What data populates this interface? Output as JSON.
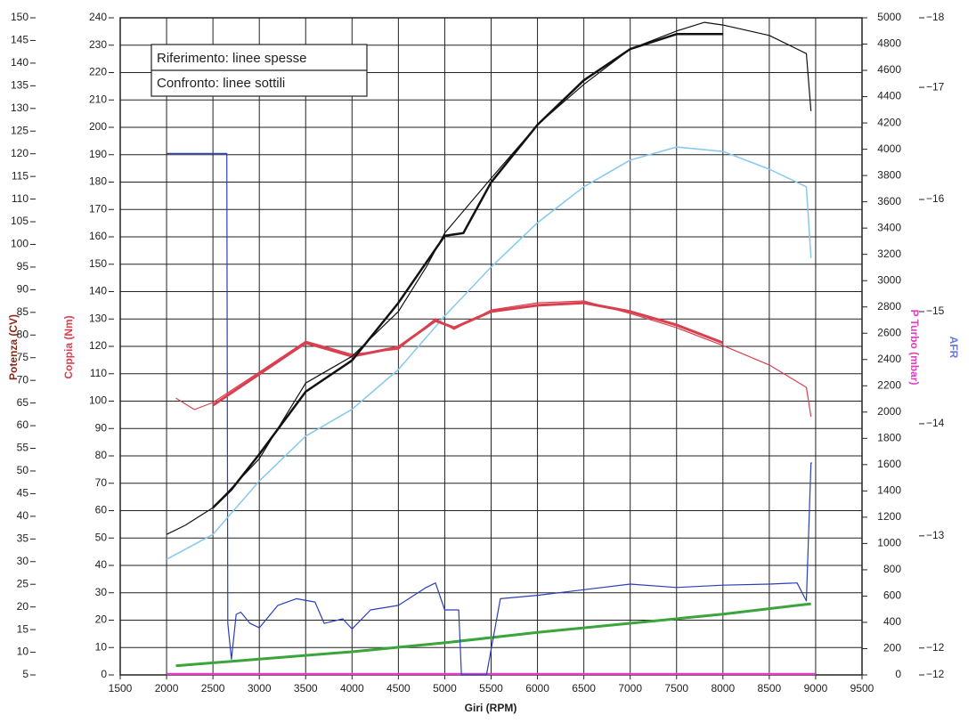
{
  "chart_data": {
    "type": "line",
    "legend": [
      "Riferimento: linee spesse",
      "Confronto: linee sottili"
    ],
    "xlabel": "Giri (RPM)",
    "ylabel": "Potenza (CV)",
    "y2label": "Coppia (Nm)",
    "y3label": "P Turbo (mbar)",
    "y4label": "AFR",
    "xlim": [
      1500,
      9500
    ],
    "xticks": [
      1500,
      2000,
      2500,
      3000,
      3500,
      4000,
      4500,
      5000,
      5500,
      6000,
      6500,
      7000,
      7500,
      8000,
      8500,
      9000,
      9500
    ],
    "ylim": [
      5,
      150
    ],
    "yticks": [
      5,
      10,
      15,
      20,
      25,
      30,
      35,
      40,
      45,
      50,
      55,
      60,
      65,
      70,
      75,
      80,
      85,
      90,
      95,
      100,
      105,
      110,
      115,
      120,
      125,
      130,
      135,
      140,
      145,
      150
    ],
    "y2lim": [
      0,
      240
    ],
    "y2ticks": [
      0,
      10,
      20,
      30,
      40,
      50,
      60,
      70,
      80,
      90,
      100,
      110,
      120,
      130,
      140,
      150,
      160,
      170,
      180,
      190,
      200,
      210,
      220,
      230,
      240
    ],
    "y3lim": [
      0,
      5000
    ],
    "y3ticks": [
      0,
      200,
      400,
      600,
      800,
      1000,
      1200,
      1400,
      1600,
      1800,
      2000,
      2200,
      2400,
      2600,
      2800,
      3000,
      3200,
      3400,
      3600,
      3800,
      4000,
      4200,
      4400,
      4600,
      4800,
      5000
    ],
    "y4lim": [
      -11.76,
      -17.62
    ],
    "y4ticks": [
      {
        "value": -11.76,
        "label": "−12"
      },
      {
        "value": -12,
        "label": "−12"
      },
      {
        "value": -13,
        "label": "−13"
      },
      {
        "value": -14,
        "label": "−14"
      },
      {
        "value": -15,
        "label": "−15"
      },
      {
        "value": -16,
        "label": "−16"
      },
      {
        "value": -17,
        "label": "−17"
      },
      {
        "value": -17.62,
        "label": "−18"
      }
    ],
    "grid": true,
    "series": [
      {
        "color": "#3aa53a",
        "axis": "y",
        "line_width": 3,
        "x": [
          2100,
          3000,
          4000,
          5000,
          6000,
          7000,
          8000,
          8950
        ],
        "values": [
          7.0,
          8.5,
          10.1,
          12.1,
          14.4,
          16.4,
          18.4,
          20.7
        ]
      },
      {
        "color": "#e040c0",
        "axis": "y3",
        "line_width": 2.5,
        "x": [
          2000,
          9000
        ],
        "values": [
          7,
          7
        ]
      },
      {
        "color": "#2a3fb8",
        "axis": "y4",
        "line_width": 1.2,
        "x": [
          2000,
          2650,
          2660,
          2700,
          2750,
          2800,
          2900,
          3000,
          3200,
          3400,
          3600,
          3700,
          3900,
          4000,
          4200,
          4500,
          4800,
          4900,
          5000,
          5150,
          5180,
          5450,
          5600,
          6000,
          6500,
          7000,
          7500,
          8000,
          8500,
          8800,
          8900,
          8950,
          8960
        ],
        "values": [
          -16.41,
          -16.41,
          -12.22,
          -11.9,
          -12.3,
          -12.32,
          -12.22,
          -12.18,
          -12.38,
          -12.44,
          -12.41,
          -12.22,
          -12.26,
          -12.17,
          -12.34,
          -12.38,
          -12.54,
          -12.58,
          -12.34,
          -12.34,
          -11.76,
          -11.76,
          -12.44,
          -12.47,
          -12.52,
          -12.57,
          -12.54,
          -12.56,
          -12.57,
          -12.58,
          -12.42,
          -13.65,
          -13.65
        ]
      },
      {
        "color": "#86c8ee",
        "axis": "y",
        "line_width": 1.5,
        "x": [
          2000,
          2500,
          3000,
          3500,
          4000,
          4500,
          5000,
          5500,
          6000,
          6500,
          7000,
          7500,
          8000,
          8500,
          8900,
          8950
        ],
        "values": [
          30.5,
          36.0,
          47.8,
          57.7,
          63.6,
          72.4,
          84.2,
          95.0,
          104.8,
          112.7,
          118.6,
          121.5,
          120.5,
          116.6,
          112.7,
          97.0
        ]
      },
      {
        "color": "#d9404f",
        "axis": "y2",
        "line_width": 1.2,
        "x": [
          2100,
          2300,
          2500,
          3000,
          3500,
          4000,
          4500,
          4900,
          5100,
          5500,
          6000,
          6500,
          7000,
          7500,
          8000,
          8500,
          8900,
          8950
        ],
        "values": [
          101.1,
          96.9,
          99.5,
          110.6,
          121.9,
          117.1,
          119.0,
          130.1,
          126.2,
          133.3,
          135.9,
          136.6,
          132.0,
          126.8,
          120.3,
          113.2,
          105.0,
          94.3
        ]
      },
      {
        "color": "#d9404f",
        "axis": "y2",
        "line_width": 3,
        "x": [
          2500,
          3000,
          3500,
          4000,
          4500,
          4900,
          5100,
          5500,
          6000,
          6500,
          7000,
          7500,
          8000
        ],
        "values": [
          98.5,
          109.9,
          121.3,
          116.4,
          119.7,
          129.4,
          126.8,
          132.7,
          135.0,
          135.9,
          132.7,
          127.8,
          121.3
        ]
      },
      {
        "color": "#111111",
        "axis": "y",
        "line_width": 1.2,
        "x": [
          2000,
          2200,
          2500,
          3000,
          3500,
          4000,
          4500,
          4800,
          5000,
          5500,
          6000,
          6500,
          7000,
          7500,
          7800,
          8000,
          8500,
          8900,
          8950
        ],
        "values": [
          36.0,
          38.0,
          41.9,
          52.7,
          69.4,
          75.3,
          85.2,
          95.0,
          102.5,
          114.6,
          126.4,
          135.3,
          143.1,
          147.1,
          149.0,
          148.4,
          146.1,
          142.1,
          129.4
        ]
      },
      {
        "color": "#111111",
        "axis": "y",
        "line_width": 2.5,
        "x": [
          2500,
          2700,
          3000,
          3500,
          4000,
          4500,
          5000,
          5200,
          5500,
          6000,
          6500,
          7000,
          7500,
          8000
        ],
        "values": [
          41.9,
          45.9,
          53.7,
          67.5,
          74.4,
          87.1,
          101.9,
          102.5,
          113.7,
          126.4,
          136.2,
          143.1,
          146.4,
          146.4
        ]
      }
    ]
  }
}
